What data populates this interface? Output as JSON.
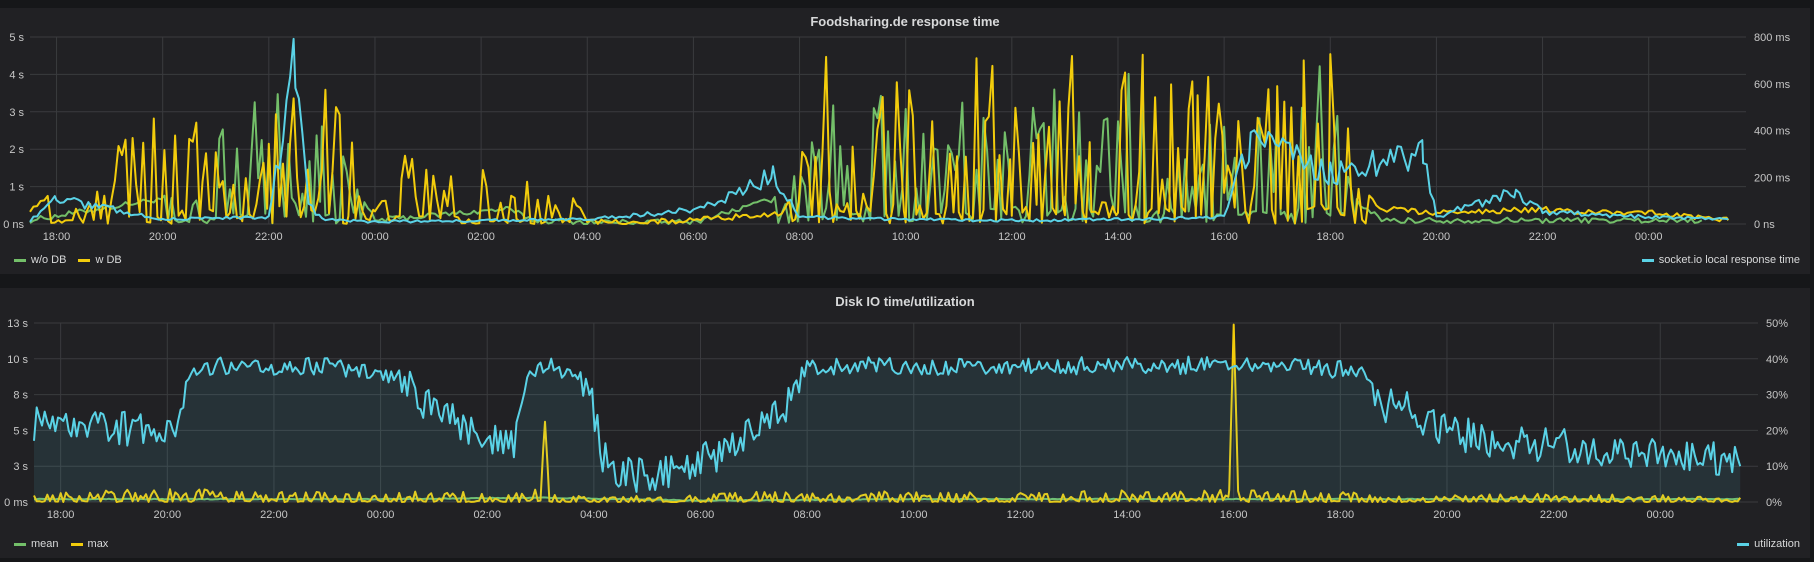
{
  "chart_data": [
    {
      "type": "line",
      "title": "Foodsharing.de response time",
      "x_ticks": [
        "18:00",
        "20:00",
        "22:00",
        "00:00",
        "02:00",
        "04:00",
        "06:00",
        "08:00",
        "10:00",
        "12:00",
        "14:00",
        "16:00",
        "18:00",
        "20:00",
        "22:00",
        "00:00"
      ],
      "y_left_ticks": [
        "0 ns",
        "1 s",
        "2 s",
        "3 s",
        "4 s",
        "5 s"
      ],
      "y_right_ticks": [
        "0 ns",
        "200 ms",
        "400 ms",
        "600 ms",
        "800 ms"
      ],
      "ylim_left": [
        0,
        5
      ],
      "ylim_right": [
        0,
        800
      ],
      "grid": true,
      "legend_left": [
        {
          "name": "w/o DB",
          "color": "#73bf69"
        },
        {
          "name": "w DB",
          "color": "#f2cc0c"
        }
      ],
      "legend_right": [
        {
          "name": "socket.io local response time",
          "color": "#5ad2e6"
        }
      ],
      "series": [
        {
          "name": "w/o DB",
          "axis": "left",
          "color": "#73bf69",
          "x": [
            "17:30",
            "20:30",
            "21:00",
            "21:40",
            "22:10",
            "22:30",
            "23:00",
            "00:00",
            "02:30",
            "03:00",
            "04:00",
            "06:00",
            "07:50",
            "08:30",
            "09:00",
            "10:00",
            "11:00",
            "12:00",
            "13:00",
            "14:00",
            "15:00",
            "16:00",
            "17:00",
            "18:00",
            "18:30",
            "19:00",
            "21:00",
            "00:00",
            "01:00"
          ],
          "values": [
            0.1,
            0.8,
            2.0,
            3.3,
            3.9,
            0.6,
            2.5,
            0.1,
            0.4,
            0.1,
            0.05,
            0.05,
            0.8,
            3.8,
            3.5,
            3.0,
            3.2,
            3.3,
            3.0,
            3.5,
            3.2,
            2.5,
            3.0,
            3.7,
            0.6,
            0.1,
            0.1,
            0.1,
            0.1
          ]
        },
        {
          "name": "w DB",
          "axis": "left",
          "color": "#f2cc0c",
          "x": [
            "17:30",
            "20:30",
            "20:45",
            "21:00",
            "21:30",
            "22:00",
            "22:20",
            "22:40",
            "23:00",
            "23:30",
            "00:00",
            "00:30",
            "02:40",
            "03:00",
            "03:20",
            "04:00",
            "05:00",
            "06:00",
            "07:40",
            "07:55",
            "08:10",
            "08:30",
            "09:00",
            "09:30",
            "10:00",
            "10:30",
            "11:00",
            "11:30",
            "12:00",
            "12:30",
            "13:00",
            "13:30",
            "14:00",
            "14:30",
            "15:00",
            "15:30",
            "16:00",
            "16:30",
            "17:00",
            "17:30",
            "18:00",
            "18:20",
            "18:40",
            "19:00",
            "20:00",
            "21:00",
            "22:00",
            "23:00",
            "00:00",
            "01:30"
          ],
          "values": [
            0.4,
            3.0,
            3.7,
            3.4,
            3.3,
            3.8,
            3.9,
            3.6,
            3.1,
            2.4,
            0.3,
            1.6,
            1.2,
            0.8,
            1.6,
            0.05,
            0.05,
            0.1,
            0.3,
            1.0,
            3.5,
            3.8,
            3.7,
            3.6,
            3.9,
            3.7,
            3.9,
            3.8,
            3.4,
            3.7,
            3.9,
            3.9,
            4.0,
            3.8,
            3.9,
            3.5,
            3.0,
            3.8,
            3.2,
            3.8,
            4.0,
            3.1,
            0.8,
            0.4,
            0.3,
            0.35,
            0.4,
            0.3,
            0.3,
            0.1
          ]
        },
        {
          "name": "socket.io local response time",
          "axis": "right",
          "color": "#5ad2e6",
          "x": [
            "17:30",
            "18:00",
            "20:00",
            "22:00",
            "22:30",
            "22:45",
            "23:00",
            "00:00",
            "02:00",
            "04:00",
            "06:00",
            "07:30",
            "08:00",
            "10:00",
            "12:00",
            "14:00",
            "16:00",
            "16:30",
            "18:00",
            "19:45",
            "20:00",
            "21:30",
            "22:00",
            "00:00",
            "01:30"
          ],
          "values": [
            15,
            110,
            20,
            30,
            700,
            80,
            20,
            10,
            15,
            20,
            60,
            200,
            30,
            20,
            15,
            20,
            30,
            350,
            220,
            310,
            30,
            140,
            50,
            30,
            20
          ]
        }
      ]
    },
    {
      "type": "area",
      "title": "Disk IO time/utilization",
      "x_ticks": [
        "18:00",
        "20:00",
        "22:00",
        "00:00",
        "02:00",
        "04:00",
        "06:00",
        "08:00",
        "10:00",
        "12:00",
        "14:00",
        "16:00",
        "18:00",
        "20:00",
        "22:00",
        "00:00"
      ],
      "y_left_ticks": [
        "0 ms",
        "3 s",
        "5 s",
        "8 s",
        "10 s",
        "13 s"
      ],
      "y_right_ticks": [
        "0%",
        "10%",
        "20%",
        "30%",
        "40%",
        "50%"
      ],
      "ylim_left": [
        0,
        12.5
      ],
      "ylim_right": [
        0,
        50
      ],
      "grid": true,
      "legend_left": [
        {
          "name": "mean",
          "color": "#73bf69"
        },
        {
          "name": "max",
          "color": "#f2cc0c"
        }
      ],
      "legend_right": [
        {
          "name": "utilization",
          "color": "#5ad2e6"
        }
      ],
      "series": [
        {
          "name": "mean",
          "axis": "left",
          "color": "#73bf69",
          "x": [
            "17:30",
            "20:00",
            "00:00",
            "03:00",
            "06:00",
            "10:00",
            "14:00",
            "18:00",
            "22:00",
            "01:30"
          ],
          "values": [
            0.2,
            0.2,
            0.2,
            0.3,
            0.1,
            0.2,
            0.2,
            0.2,
            0.2,
            0.2
          ]
        },
        {
          "name": "max",
          "axis": "left",
          "color": "#f2cc0c",
          "x": [
            "17:30",
            "18:00",
            "20:00",
            "22:00",
            "00:00",
            "02:00",
            "03:00",
            "03:05",
            "03:10",
            "04:00",
            "06:00",
            "08:00",
            "10:00",
            "12:00",
            "14:00",
            "15:55",
            "16:00",
            "16:05",
            "18:00",
            "20:00",
            "22:00",
            "00:00",
            "01:30"
          ],
          "values": [
            0.5,
            0.6,
            0.8,
            0.6,
            0.7,
            0.6,
            0.8,
            5.6,
            0.5,
            0.3,
            0.5,
            0.7,
            0.6,
            0.6,
            0.7,
            0.8,
            12.4,
            0.8,
            0.6,
            0.4,
            0.5,
            0.4,
            0.3
          ]
        },
        {
          "name": "utilization",
          "axis": "right",
          "color": "#5ad2e6",
          "x": [
            "17:30",
            "18:30",
            "19:30",
            "20:15",
            "20:30",
            "21:00",
            "22:00",
            "23:00",
            "23:30",
            "00:00",
            "00:30",
            "01:00",
            "01:30",
            "02:00",
            "02:30",
            "02:45",
            "03:00",
            "03:30",
            "03:55",
            "04:10",
            "04:30",
            "05:00",
            "05:30",
            "06:00",
            "06:30",
            "07:00",
            "07:30",
            "08:00",
            "09:00",
            "10:00",
            "11:00",
            "12:00",
            "13:00",
            "14:00",
            "15:00",
            "16:00",
            "17:00",
            "18:00",
            "18:30",
            "18:45",
            "19:00",
            "20:00",
            "20:30",
            "21:00",
            "22:00",
            "23:00",
            "00:00",
            "01:00",
            "01:30"
          ],
          "values": [
            22,
            22,
            20,
            23,
            37,
            38,
            38,
            38,
            37,
            37,
            32,
            26,
            22,
            18,
            16,
            35,
            38,
            37,
            31,
            12,
            8,
            7,
            9,
            11,
            15,
            20,
            24,
            38,
            38,
            38,
            38,
            38,
            38,
            38,
            38,
            39,
            38,
            37,
            36,
            24,
            28,
            20,
            18,
            17,
            16,
            15,
            14,
            12,
            10
          ]
        }
      ]
    }
  ]
}
